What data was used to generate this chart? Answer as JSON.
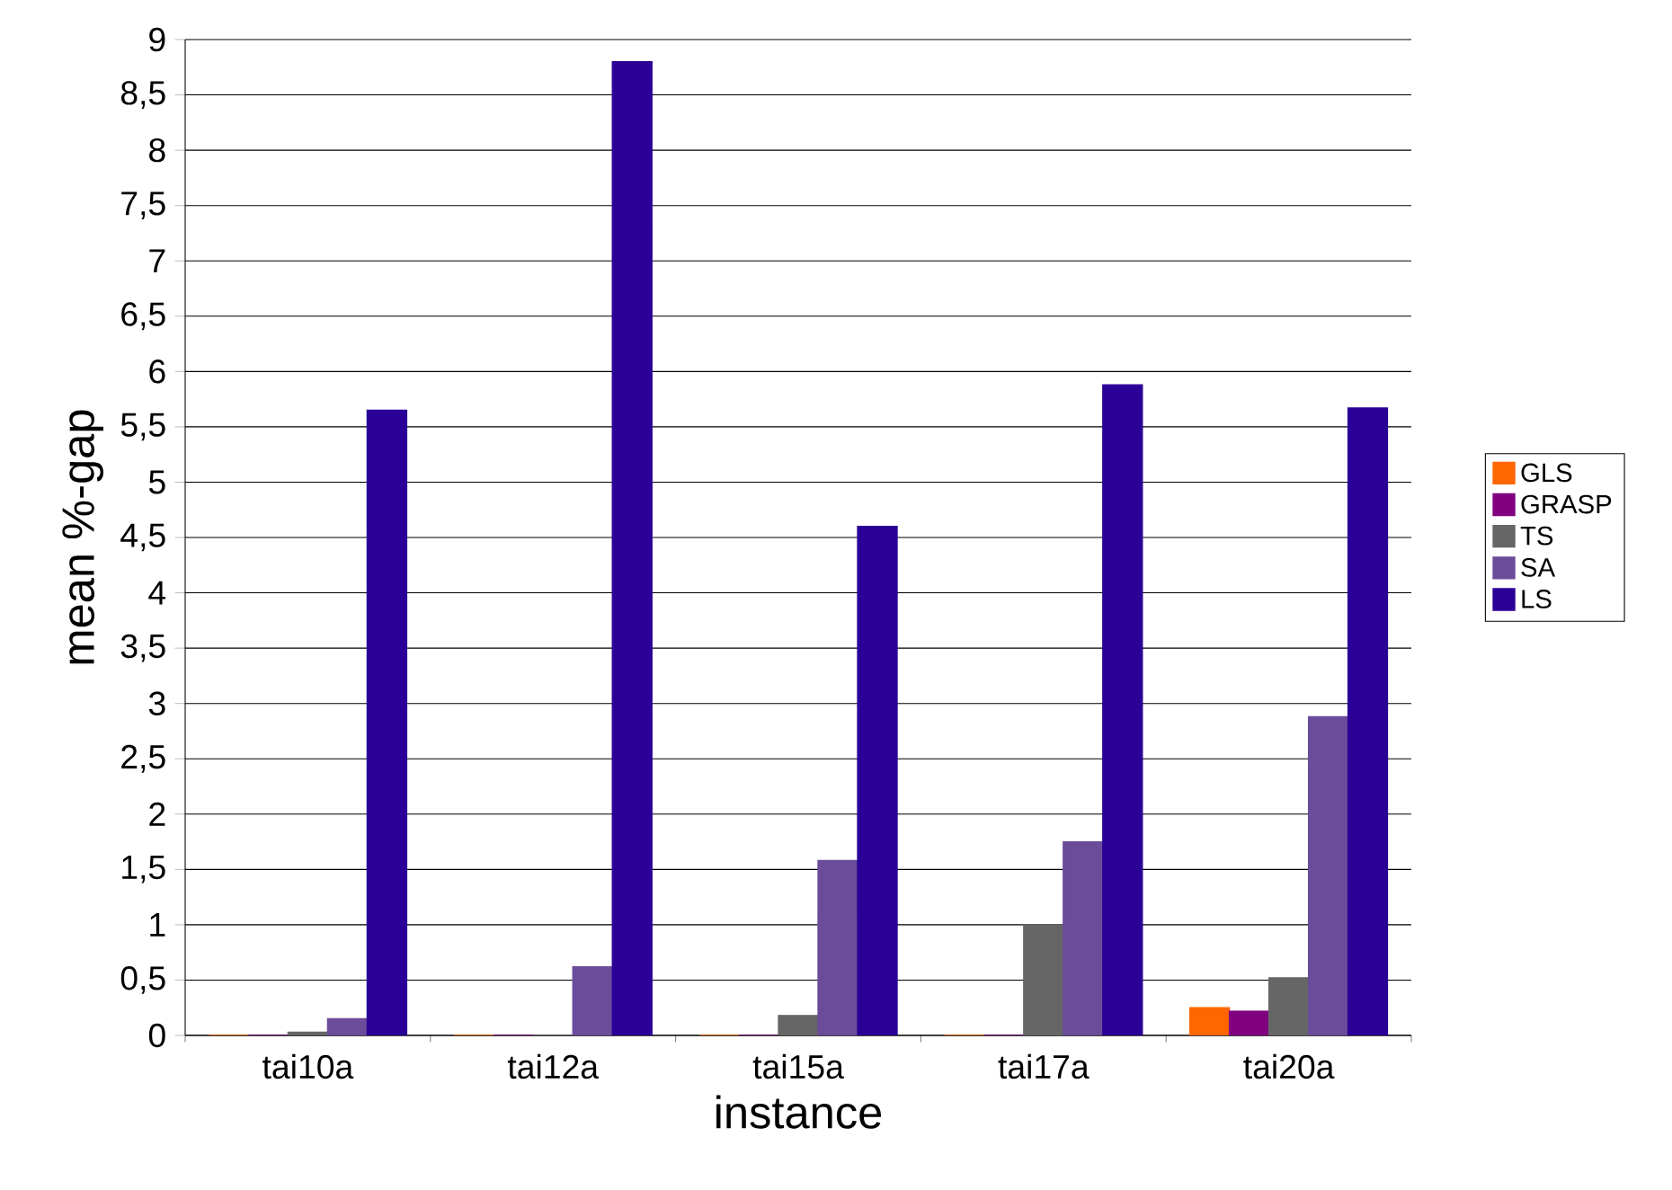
{
  "chart_data": {
    "type": "bar",
    "xlabel": "instance",
    "ylabel": "mean %-gap",
    "categories": [
      "tai10a",
      "tai12a",
      "tai15a",
      "tai17a",
      "tai20a"
    ],
    "series": [
      {
        "name": "GLS",
        "color": "#ff6600",
        "values": [
          0,
          0,
          0,
          0,
          0.25
        ]
      },
      {
        "name": "GRASP",
        "color": "#800080",
        "values": [
          0,
          0,
          0,
          0,
          0.22
        ]
      },
      {
        "name": "TS",
        "color": "#666666",
        "values": [
          0.03,
          0,
          0.18,
          1.0,
          0.52
        ]
      },
      {
        "name": "SA",
        "color": "#6b4c9a",
        "values": [
          0.15,
          0.62,
          1.58,
          1.75,
          2.88
        ]
      },
      {
        "name": "LS",
        "color": "#2a0096",
        "values": [
          5.65,
          8.8,
          4.6,
          5.88,
          5.67
        ]
      }
    ],
    "ylim": [
      0,
      9
    ],
    "yticks": [
      0,
      {
        "value": 0.5,
        "label": "0,5"
      },
      1,
      {
        "value": 1.5,
        "label": "1,5"
      },
      2,
      {
        "value": 2.5,
        "label": "2,5"
      },
      3,
      {
        "value": 3.5,
        "label": "3,5"
      },
      4,
      {
        "value": 4.5,
        "label": "4,5"
      },
      5,
      {
        "value": 5.5,
        "label": "5,5"
      },
      6,
      {
        "value": 6.5,
        "label": "6,5"
      },
      7,
      {
        "value": 7.5,
        "label": "7,5"
      },
      8,
      {
        "value": 8.5,
        "label": "8,5"
      },
      9
    ],
    "grid": "y",
    "legend": "right"
  }
}
